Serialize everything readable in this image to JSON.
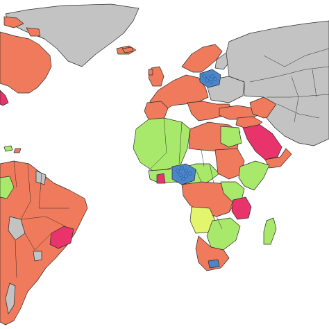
{
  "map": {
    "categories": [
      {
        "key": "no_data",
        "color": "#c3c3c3"
      },
      {
        "key": "light_green",
        "color": "#a8e86a"
      },
      {
        "key": "orange",
        "color": "#ef7a5c"
      },
      {
        "key": "magenta",
        "color": "#e8336b"
      },
      {
        "key": "blue",
        "color": "#4a86c8"
      },
      {
        "key": "yellow_green",
        "color": "#e2f56c"
      }
    ],
    "ocean_color": "#ffffff",
    "border_color": "#2b2b2b"
  }
}
